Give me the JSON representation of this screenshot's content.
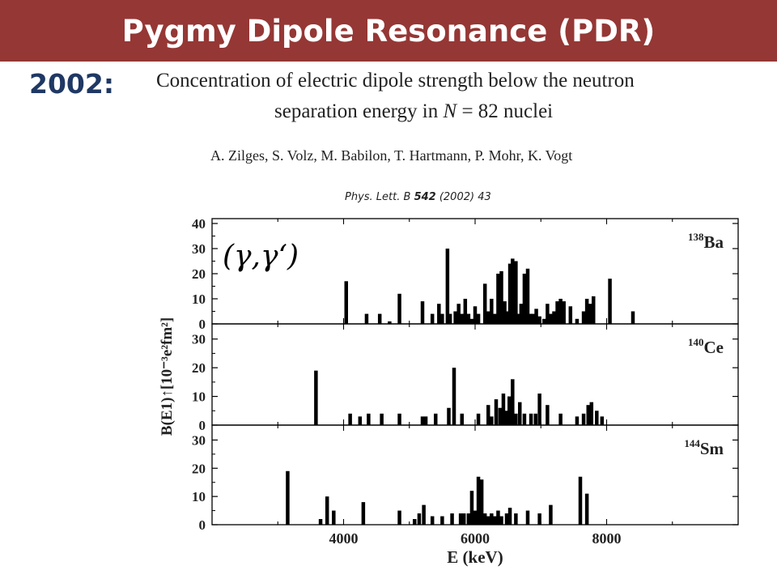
{
  "header": {
    "title": "Pygmy Dipole Resonance (PDR)"
  },
  "year_label": "2002:",
  "paper": {
    "title_line1": "Concentration of electric dipole strength below the neutron",
    "title_line2_prefix": "separation energy in ",
    "title_line2_var": "N",
    "title_line2_suffix": " = 82 nuclei",
    "authors": "A. Zilges, S. Volz, M. Babilon, T. Hartmann, P. Mohr, K. Vogt",
    "citation_journal": "Phys. Lett. B ",
    "citation_volume": "542",
    "citation_rest": " (2002) 43"
  },
  "colors": {
    "header_bg": "#953735",
    "year_text": "#1f3864",
    "bars": "#000000"
  },
  "chart_data": {
    "type": "bar",
    "reaction_label": "(γ,γ‘)",
    "xlabel": "E (keV)",
    "ylabel": "B(E1)↑[10⁻³e²fm²]",
    "xlim": [
      2000,
      10000
    ],
    "x_ticks": [
      "4000",
      "6000",
      "8000"
    ],
    "panels": [
      {
        "nucleus_mass": "138",
        "nucleus_symbol": "Ba",
        "ylim": [
          0,
          40
        ],
        "y_ticks": [
          "0",
          "10",
          "20",
          "30",
          "40"
        ],
        "x": [
          4040,
          4350,
          4550,
          4700,
          4850,
          5200,
          5350,
          5450,
          5500,
          5580,
          5620,
          5700,
          5750,
          5800,
          5850,
          5900,
          5950,
          6000,
          6050,
          6150,
          6200,
          6250,
          6300,
          6350,
          6400,
          6450,
          6480,
          6530,
          6570,
          6620,
          6660,
          6700,
          6750,
          6800,
          6840,
          6880,
          6930,
          6980,
          7050,
          7100,
          7150,
          7200,
          7250,
          7300,
          7350,
          7450,
          7550,
          7650,
          7700,
          7750,
          7800,
          8050,
          8400
        ],
        "y": [
          17,
          4,
          4,
          1,
          12,
          9,
          4,
          8,
          4,
          30,
          4,
          5,
          8,
          4,
          10,
          4,
          2,
          7,
          4,
          16,
          5,
          10,
          4,
          20,
          21,
          9,
          5,
          24,
          26,
          25,
          4,
          8,
          20,
          22,
          4,
          4,
          6,
          3,
          2,
          8,
          4,
          5,
          9,
          10,
          9,
          7,
          2,
          5,
          10,
          8,
          11,
          18,
          5
        ]
      },
      {
        "nucleus_mass": "140",
        "nucleus_symbol": "Ce",
        "ylim": [
          0,
          35
        ],
        "y_ticks": [
          "0",
          "10",
          "20",
          "30"
        ],
        "x": [
          3580,
          4100,
          4250,
          4380,
          4580,
          4850,
          5200,
          5250,
          5400,
          5600,
          5680,
          5800,
          6050,
          6200,
          6250,
          6320,
          6380,
          6430,
          6470,
          6520,
          6570,
          6620,
          6680,
          6750,
          6850,
          6920,
          6980,
          7100,
          7300,
          7550,
          7650,
          7720,
          7770,
          7850,
          7930
        ],
        "y": [
          19,
          4,
          3,
          4,
          4,
          4,
          3,
          3,
          4,
          6,
          20,
          4,
          4,
          7,
          3,
          9,
          6,
          11,
          5,
          10,
          16,
          4,
          8,
          4,
          4,
          4,
          11,
          7,
          4,
          3,
          4,
          7,
          8,
          5,
          3
        ]
      },
      {
        "nucleus_mass": "144",
        "nucleus_symbol": "Sm",
        "ylim": [
          0,
          35
        ],
        "y_ticks": [
          "0",
          "10",
          "20",
          "30"
        ],
        "x": [
          3150,
          3650,
          3750,
          3850,
          4300,
          4850,
          5080,
          5150,
          5220,
          5350,
          5500,
          5650,
          5780,
          5830,
          5900,
          5950,
          6000,
          6050,
          6100,
          6150,
          6200,
          6250,
          6300,
          6350,
          6400,
          6480,
          6530,
          6620,
          6800,
          6980,
          7150,
          7600,
          7700
        ],
        "y": [
          19,
          2,
          10,
          5,
          8,
          5,
          2,
          4,
          7,
          3,
          3,
          4,
          4,
          4,
          4,
          12,
          5,
          17,
          16,
          4,
          3,
          4,
          3,
          5,
          3,
          4,
          6,
          4,
          5,
          4,
          7,
          17,
          11
        ]
      }
    ]
  }
}
